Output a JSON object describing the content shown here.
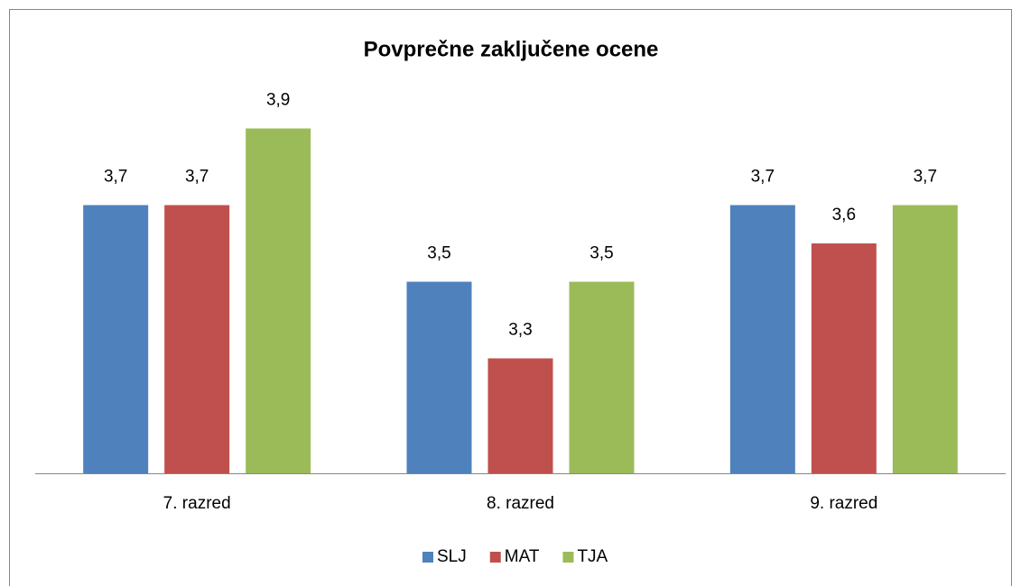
{
  "chart_data": {
    "type": "bar",
    "title": "Povprečne zaključene ocene",
    "categories": [
      "7. razred",
      "8. razred",
      "9. razred"
    ],
    "series": [
      {
        "name": "SLJ",
        "color": "#4f81bd",
        "values": [
          3.7,
          3.5,
          3.7
        ],
        "value_labels": [
          "3,7",
          "3,5",
          "3,7"
        ]
      },
      {
        "name": "MAT",
        "color": "#c0504d",
        "values": [
          3.7,
          3.3,
          3.6
        ],
        "value_labels": [
          "3,7",
          "3,3",
          "3,6"
        ]
      },
      {
        "name": "TJA",
        "color": "#9bbb59",
        "values": [
          3.9,
          3.5,
          3.7
        ],
        "value_labels": [
          "3,9",
          "3,5",
          "3,7"
        ]
      }
    ],
    "ylim": [
      3,
      4
    ],
    "legend": "bottom"
  }
}
